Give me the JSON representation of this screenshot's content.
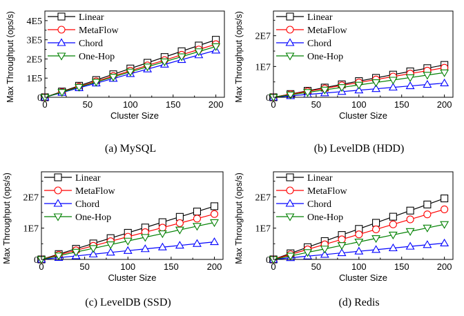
{
  "chart_data": [
    {
      "type": "line",
      "caption": "(a) MySQL",
      "xlabel": "Cluster Size",
      "ylabel": "Max Throughput (ops/s)",
      "xlim": [
        0,
        210
      ],
      "ylim": [
        0,
        450000
      ],
      "xticks": [
        0,
        50,
        100,
        150,
        200
      ],
      "xtick_labels": [
        "0",
        "50",
        "100",
        "150",
        "200"
      ],
      "yticks": [
        0,
        100000,
        200000,
        300000,
        400000
      ],
      "ytick_labels": [
        "0",
        "1E5",
        "2E5",
        "3E5",
        "4E5"
      ],
      "legend_position": "top-left",
      "x": [
        0,
        20,
        40,
        60,
        80,
        100,
        120,
        140,
        160,
        180,
        200
      ],
      "series": [
        {
          "name": "Linear",
          "color": "#000000",
          "marker": "square",
          "values": [
            0,
            30000,
            60000,
            90000,
            120000,
            150000,
            180000,
            210000,
            240000,
            270000,
            300000
          ]
        },
        {
          "name": "MetaFlow",
          "color": "#ff0000",
          "marker": "circle",
          "values": [
            0,
            27700,
            55400,
            83100,
            110800,
            138500,
            166200,
            193900,
            221600,
            249300,
            277000
          ]
        },
        {
          "name": "Chord",
          "color": "#0000ff",
          "marker": "triangle-up",
          "values": [
            0,
            24500,
            49000,
            73500,
            98000,
            122500,
            147000,
            171500,
            196000,
            220500,
            245000
          ]
        },
        {
          "name": "One-Hop",
          "color": "#008000",
          "marker": "triangle-down",
          "values": [
            0,
            26500,
            53000,
            79500,
            106000,
            132500,
            159000,
            185500,
            212000,
            238500,
            265000
          ]
        }
      ]
    },
    {
      "type": "line",
      "caption": "(b) LevelDB (HDD)",
      "xlabel": "Cluster Size",
      "ylabel": "Max Throughput (ops/s)",
      "xlim": [
        0,
        210
      ],
      "ylim": [
        0,
        28000000
      ],
      "xticks": [
        0,
        50,
        100,
        150,
        200
      ],
      "xtick_labels": [
        "0",
        "50",
        "100",
        "150",
        "200"
      ],
      "yticks": [
        0,
        10000000,
        20000000
      ],
      "ytick_labels": [
        "0",
        "1E7",
        "2E7"
      ],
      "legend_position": "top-left",
      "x": [
        0,
        20,
        40,
        60,
        80,
        100,
        120,
        140,
        160,
        180,
        200
      ],
      "series": [
        {
          "name": "Linear",
          "color": "#000000",
          "marker": "square",
          "values": [
            0,
            1050000,
            2100000,
            3150000,
            4200000,
            5250000,
            6300000,
            7350000,
            8400000,
            9450000,
            10500000
          ]
        },
        {
          "name": "MetaFlow",
          "color": "#ff0000",
          "marker": "circle",
          "values": [
            0,
            960000,
            1920000,
            2880000,
            3840000,
            4800000,
            5760000,
            6720000,
            7680000,
            8640000,
            9600000
          ]
        },
        {
          "name": "Chord",
          "color": "#0000ff",
          "marker": "triangle-up",
          "values": [
            0,
            460000,
            920000,
            1380000,
            1840000,
            2300000,
            2760000,
            3220000,
            3680000,
            4140000,
            4600000
          ]
        },
        {
          "name": "One-Hop",
          "color": "#008000",
          "marker": "triangle-down",
          "values": [
            0,
            800000,
            1600000,
            2400000,
            3200000,
            4000000,
            4800000,
            5600000,
            6400000,
            7200000,
            8000000
          ]
        }
      ]
    },
    {
      "type": "line",
      "caption": "(c) LevelDB (SSD)",
      "xlabel": "Cluster Size",
      "ylabel": "Max Throughput (ops/s)",
      "xlim": [
        0,
        210
      ],
      "ylim": [
        0,
        28000000
      ],
      "xticks": [
        0,
        50,
        100,
        150,
        200
      ],
      "xtick_labels": [
        "0",
        "50",
        "100",
        "150",
        "200"
      ],
      "yticks": [
        0,
        10000000,
        20000000
      ],
      "ytick_labels": [
        "0",
        "1E7",
        "2E7"
      ],
      "legend_position": "top-left",
      "x": [
        0,
        20,
        40,
        60,
        80,
        100,
        120,
        140,
        160,
        180,
        200
      ],
      "series": [
        {
          "name": "Linear",
          "color": "#000000",
          "marker": "square",
          "values": [
            0,
            1700000,
            3400000,
            5100000,
            6800000,
            8500000,
            10200000,
            11900000,
            13600000,
            15300000,
            17000000
          ]
        },
        {
          "name": "MetaFlow",
          "color": "#ff0000",
          "marker": "circle",
          "values": [
            0,
            1450000,
            2900000,
            4350000,
            5800000,
            7250000,
            8700000,
            10150000,
            11600000,
            13050000,
            14500000
          ]
        },
        {
          "name": "Chord",
          "color": "#0000ff",
          "marker": "triangle-up",
          "values": [
            0,
            560000,
            1120000,
            1680000,
            2240000,
            2800000,
            3360000,
            3920000,
            4480000,
            5040000,
            5600000
          ]
        },
        {
          "name": "One-Hop",
          "color": "#008000",
          "marker": "triangle-down",
          "values": [
            0,
            1180000,
            2360000,
            3540000,
            4720000,
            5900000,
            7080000,
            8260000,
            9440000,
            10620000,
            11800000
          ]
        }
      ]
    },
    {
      "type": "line",
      "caption": "(d) Redis",
      "xlabel": "Cluster Size",
      "ylabel": "Max Throughput (ops/s)",
      "xlim": [
        0,
        210
      ],
      "ylim": [
        0,
        28000000
      ],
      "xticks": [
        0,
        50,
        100,
        150,
        200
      ],
      "xtick_labels": [
        "0",
        "50",
        "100",
        "150",
        "200"
      ],
      "yticks": [
        0,
        10000000,
        20000000
      ],
      "ytick_labels": [
        "0",
        "1E7",
        "2E7"
      ],
      "legend_position": "top-left",
      "x": [
        0,
        20,
        40,
        60,
        80,
        100,
        120,
        140,
        160,
        180,
        200
      ],
      "series": [
        {
          "name": "Linear",
          "color": "#000000",
          "marker": "square",
          "values": [
            0,
            1950000,
            3900000,
            5850000,
            7800000,
            9750000,
            11700000,
            13650000,
            15600000,
            17550000,
            19500000
          ]
        },
        {
          "name": "MetaFlow",
          "color": "#ff0000",
          "marker": "circle",
          "values": [
            0,
            1600000,
            3200000,
            4800000,
            6400000,
            8000000,
            9600000,
            11200000,
            12800000,
            14400000,
            16000000
          ]
        },
        {
          "name": "Chord",
          "color": "#0000ff",
          "marker": "triangle-up",
          "values": [
            0,
            520000,
            1040000,
            1560000,
            2080000,
            2600000,
            3120000,
            3640000,
            4160000,
            4680000,
            5200000
          ]
        },
        {
          "name": "One-Hop",
          "color": "#008000",
          "marker": "triangle-down",
          "values": [
            0,
            1120000,
            2240000,
            3360000,
            4480000,
            5600000,
            6720000,
            7840000,
            8960000,
            10080000,
            11200000
          ]
        }
      ]
    }
  ]
}
